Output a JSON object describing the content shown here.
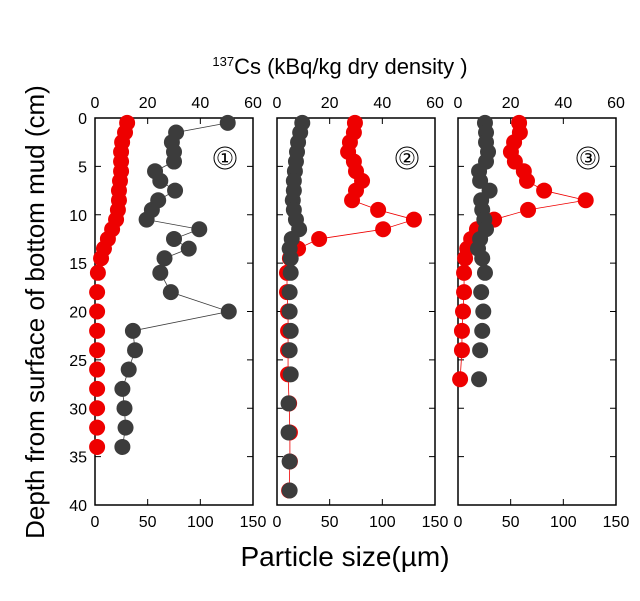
{
  "chart_data": [
    {
      "type": "scatter",
      "panel_label": "①",
      "x2_label_sup": "137",
      "x2_label": "Cs (kBq/kg dry density )",
      "xlabel": "Particle size(µm)",
      "ylabel": "Depth from surface of bottom mud (cm)",
      "xlim": [
        0,
        150
      ],
      "xticks": [
        0,
        50,
        100,
        150
      ],
      "x2lim": [
        0,
        60
      ],
      "x2ticks": [
        0,
        20,
        40,
        60
      ],
      "ylim": [
        0,
        40
      ],
      "y_inverted": true,
      "yticks": [
        0,
        5,
        10,
        15,
        20,
        25,
        30,
        35,
        40
      ],
      "show_ytick_labels": true,
      "series": [
        {
          "color": "#ee0000",
          "axis": "x2",
          "connect": false,
          "x": [
            12.2,
            11.4,
            10.3,
            9.9,
            9.9,
            9.9,
            9.5,
            9.1,
            9.1,
            8.7,
            8,
            6.5,
            4.9,
            3.4,
            2.3,
            1.1,
            0.8,
            0.8,
            0.8,
            0.8,
            0.8,
            0.8,
            0.8,
            0.8,
            0.8
          ],
          "y": [
            0.5,
            1.5,
            2.5,
            3.5,
            4.5,
            5.5,
            6.5,
            7.5,
            8.5,
            9.5,
            10.5,
            11.5,
            12.5,
            13.5,
            14.5,
            16,
            18,
            20,
            22,
            24,
            26,
            28,
            30,
            32,
            34
          ]
        },
        {
          "color": "#3c3c3c",
          "axis": "x",
          "connect": true,
          "x": [
            126,
            77,
            73,
            75,
            75,
            57,
            62,
            76,
            60,
            54,
            49,
            99,
            75,
            89,
            66,
            62,
            72,
            127,
            36,
            38,
            32,
            26,
            28,
            29,
            26
          ],
          "y": [
            0.5,
            1.5,
            2.5,
            3.5,
            4.5,
            5.5,
            6.5,
            7.5,
            8.5,
            9.5,
            10.5,
            11.5,
            12.5,
            13.5,
            14.5,
            16,
            18,
            20,
            22,
            24,
            26,
            28,
            30,
            32,
            34
          ]
        }
      ]
    },
    {
      "type": "scatter",
      "panel_label": "②",
      "xlim": [
        0,
        150
      ],
      "xticks": [
        0,
        50,
        100,
        150
      ],
      "x2lim": [
        0,
        60
      ],
      "x2ticks": [
        0,
        20,
        40,
        60
      ],
      "ylim": [
        0,
        40
      ],
      "y_inverted": true,
      "yticks": [
        0,
        5,
        10,
        15,
        20,
        25,
        30,
        35,
        40
      ],
      "show_ytick_labels": false,
      "series": [
        {
          "color": "#ee0000",
          "axis": "x2",
          "connect": true,
          "x": [
            29.6,
            29.2,
            27.7,
            27,
            29.2,
            30,
            32.3,
            30,
            28.5,
            38.4,
            52,
            40.3,
            16,
            8,
            4.9,
            3.8,
            3.8,
            4.2,
            4.2,
            4.2,
            4.2,
            4.6,
            4.9,
            4.9,
            4.6
          ],
          "y": [
            0.5,
            1.5,
            2.5,
            3.5,
            4.5,
            5.5,
            6.5,
            7.5,
            8.5,
            9.5,
            10.5,
            11.5,
            12.5,
            13.5,
            14.5,
            16,
            18,
            20,
            22,
            24,
            26.5,
            29.5,
            32.5,
            35.5,
            38.5
          ]
        },
        {
          "color": "#3c3c3c",
          "axis": "x",
          "connect": false,
          "x": [
            24,
            22,
            20,
            19,
            18,
            17,
            16,
            16,
            15,
            16,
            18,
            21,
            14,
            12,
            13,
            13,
            12,
            12,
            13,
            12,
            13,
            11,
            11,
            12,
            12
          ],
          "y": [
            0.5,
            1.5,
            2.5,
            3.5,
            4.5,
            5.5,
            6.5,
            7.5,
            8.5,
            9.5,
            10.5,
            11.5,
            12.5,
            13.5,
            14.5,
            16,
            18,
            20,
            22,
            24,
            26.5,
            29.5,
            32.5,
            35.5,
            38.5
          ]
        }
      ]
    },
    {
      "type": "scatter",
      "panel_label": "③",
      "xlim": [
        0,
        150
      ],
      "xticks": [
        0,
        50,
        100,
        150
      ],
      "x2lim": [
        0,
        60
      ],
      "x2ticks": [
        0,
        20,
        40,
        60
      ],
      "ylim": [
        0,
        40
      ],
      "y_inverted": true,
      "yticks": [
        0,
        5,
        10,
        15,
        20,
        25,
        30,
        35,
        40
      ],
      "show_ytick_labels": false,
      "series": [
        {
          "color": "#ee0000",
          "axis": "x2",
          "connect": true,
          "x": [
            23.2,
            23.5,
            21.3,
            20.1,
            21.6,
            25,
            26.2,
            32.7,
            48.5,
            26.6,
            13.7,
            7.2,
            5,
            3.5,
            2.7,
            2.3,
            2.3,
            1.9,
            1.5,
            1.5,
            0.8
          ],
          "y": [
            0.5,
            1.5,
            2.5,
            3.5,
            4.5,
            5.5,
            6.5,
            7.5,
            8.5,
            9.5,
            10.5,
            11.5,
            12.5,
            13.5,
            14.5,
            16,
            18,
            20,
            22,
            24,
            27
          ]
        },
        {
          "color": "#3c3c3c",
          "axis": "x",
          "connect": false,
          "x": [
            25.6,
            26.6,
            26.6,
            28.5,
            26.6,
            20,
            21,
            30,
            22,
            23,
            25,
            26.6,
            21,
            19,
            23,
            25.6,
            22,
            24,
            23,
            21,
            20
          ],
          "y": [
            0.5,
            1.5,
            2.5,
            3.5,
            4.5,
            5.5,
            6.5,
            7.5,
            8.5,
            9.5,
            10.5,
            11.5,
            12.5,
            13.5,
            14.5,
            16,
            18,
            20,
            22,
            24,
            27
          ]
        }
      ]
    }
  ]
}
